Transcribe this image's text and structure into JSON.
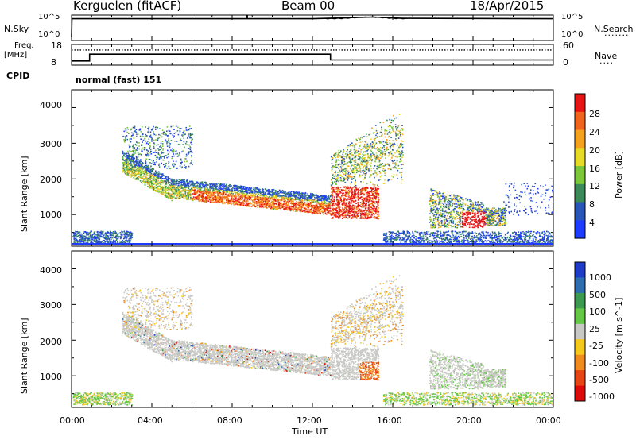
{
  "header": {
    "station": "Kerguelen (fitACF)",
    "beam": "Beam 00",
    "date": "18/Apr/2015"
  },
  "chart_data": [
    {
      "type": "line",
      "name_panel": "nsky_nsearch",
      "left_label": "N.Sky",
      "right_label": "N.Search",
      "left_ticks": [
        "10^5",
        "10^0"
      ],
      "right_ticks": [
        "10^5",
        "10^0"
      ],
      "nsky_level": [
        {
          "t": 0.0,
          "v": 0
        },
        {
          "t": 0.02,
          "v": 4.5
        },
        {
          "t": 12.0,
          "v": 4.5
        },
        {
          "t": 13.5,
          "v": 4.7
        },
        {
          "t": 15.0,
          "v": 4.9
        },
        {
          "t": 16.5,
          "v": 4.6
        },
        {
          "t": 24.0,
          "v": 4.5
        }
      ],
      "spike_time": 8.75
    },
    {
      "type": "line",
      "name_panel": "freq_nave",
      "left_label_top": "Freq.",
      "left_label_unit": "[MHz]",
      "left_ticks": [
        "18",
        "8"
      ],
      "right_label": "Nave",
      "right_ticks": [
        "60",
        "0"
      ],
      "frequency_mhz": [
        {
          "t": 0.0,
          "v": 9
        },
        {
          "t": 0.9,
          "v": 12.9
        },
        {
          "t": 12.9,
          "v": 9.6
        },
        {
          "t": 24.0,
          "v": 9.6
        }
      ],
      "nave": [
        {
          "t": 0.0,
          "v": 44
        },
        {
          "t": 24.0,
          "v": 44
        }
      ]
    },
    {
      "type": "heatmap",
      "name_panel": "power",
      "cpid_label": "CPID",
      "cpid_value": "normal (fast) 151",
      "ylabel": "Slant Range [km]",
      "yticks": [
        "4000",
        "3000",
        "2000",
        "1000"
      ],
      "ylim": [
        180,
        4500
      ],
      "colorbar_label": "Power [dB]",
      "colorbar_ticks": [
        "28",
        "24",
        "20",
        "16",
        "12",
        "8",
        "4"
      ],
      "colorbar_colors": [
        "#1e3cff",
        "#2a55b8",
        "#3a8a5a",
        "#7cc83a",
        "#e6dc28",
        "#f5a21e",
        "#f0641e",
        "#e61414"
      ]
    },
    {
      "type": "heatmap",
      "name_panel": "velocity",
      "ylabel": "Slant Range [km]",
      "yticks": [
        "4000",
        "3000",
        "2000",
        "1000"
      ],
      "ylim": [
        180,
        4500
      ],
      "xlabel": "Time UT",
      "xticks": [
        "00:00",
        "04:00",
        "08:00",
        "12:00",
        "16:00",
        "20:00",
        "00:00"
      ],
      "colorbar_label": "Velocity [m s^-1]",
      "colorbar_ticks": [
        "1000",
        "500",
        "100",
        "25",
        "-25",
        "-100",
        "-500",
        "-1000"
      ],
      "colorbar_colors": [
        "#1e3cc8",
        "#2e6eb0",
        "#3c9a50",
        "#64c846",
        "#c8c8c4",
        "#f5c81e",
        "#f08c1e",
        "#e64614",
        "#dc0a0a"
      ]
    }
  ]
}
